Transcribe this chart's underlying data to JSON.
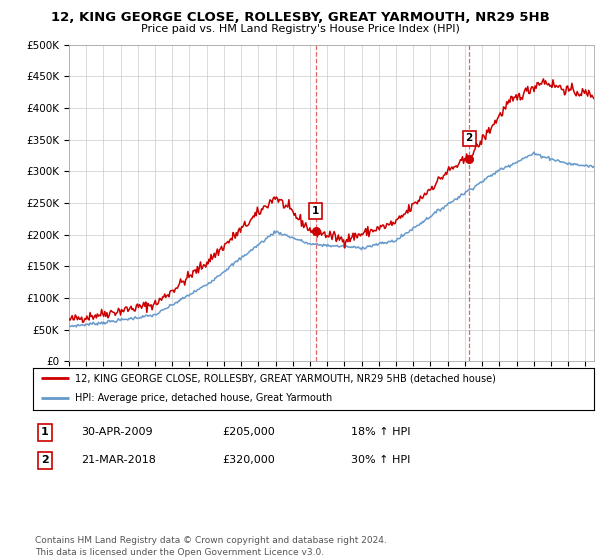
{
  "title": "12, KING GEORGE CLOSE, ROLLESBY, GREAT YARMOUTH, NR29 5HB",
  "subtitle": "Price paid vs. HM Land Registry's House Price Index (HPI)",
  "ylim": [
    0,
    500000
  ],
  "yticks": [
    0,
    50000,
    100000,
    150000,
    200000,
    250000,
    300000,
    350000,
    400000,
    450000,
    500000
  ],
  "ytick_labels": [
    "£0",
    "£50K",
    "£100K",
    "£150K",
    "£200K",
    "£250K",
    "£300K",
    "£350K",
    "£400K",
    "£450K",
    "£500K"
  ],
  "red_line_color": "#cc0000",
  "blue_line_color": "#6699cc",
  "marker1_year": 2009.333,
  "marker1_value": 205000,
  "marker2_year": 2018.25,
  "marker2_value": 320000,
  "legend_line1": "12, KING GEORGE CLOSE, ROLLESBY, GREAT YARMOUTH, NR29 5HB (detached house)",
  "legend_line2": "HPI: Average price, detached house, Great Yarmouth",
  "table_row1_num": "1",
  "table_row1_date": "30-APR-2009",
  "table_row1_price": "£205,000",
  "table_row1_hpi": "18% ↑ HPI",
  "table_row2_num": "2",
  "table_row2_date": "21-MAR-2018",
  "table_row2_price": "£320,000",
  "table_row2_hpi": "30% ↑ HPI",
  "footer": "Contains HM Land Registry data © Crown copyright and database right 2024.\nThis data is licensed under the Open Government Licence v3.0.",
  "background_color": "#ffffff",
  "grid_color": "#cccccc"
}
